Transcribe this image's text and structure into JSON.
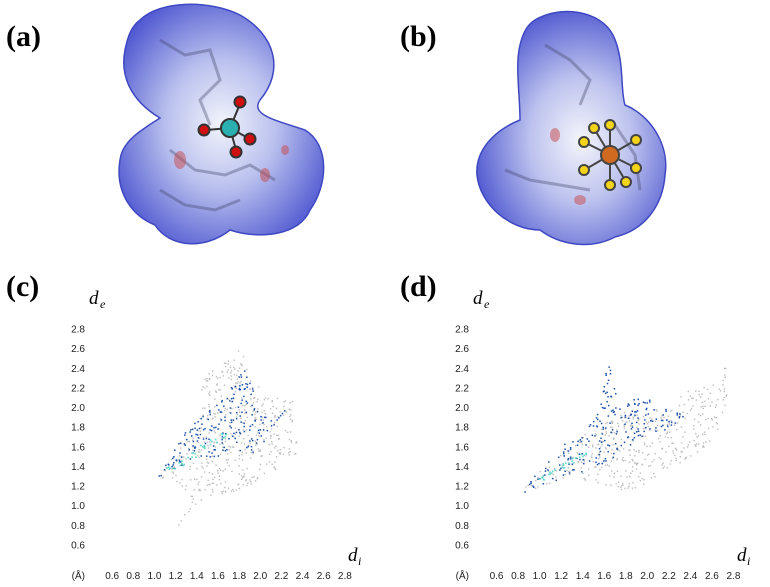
{
  "figure": {
    "panels": [
      {
        "label": "(a)"
      },
      {
        "label": "(b)"
      },
      {
        "label": "(c)"
      },
      {
        "label": "(d)"
      }
    ],
    "colors": {
      "surface_blue": "#5a63d6",
      "surface_white": "#e8ecf6",
      "surface_red": "#c84a4a",
      "points_grey": "#bdbdbd",
      "points_blue": "#1b4fa8",
      "points_cyan": "#5fd8c8",
      "atom_oxygen": "#d01010",
      "atom_chlorine": "#2ab0b0",
      "atom_fluorine": "#f3d418",
      "atom_phosphorus": "#d06a20"
    }
  },
  "chart_data": [
    {
      "type": "scatter",
      "panel": "(c)",
      "ylabel_main": "d",
      "ylabel_sub": "e",
      "xlabel_main": "d",
      "xlabel_sub": "i",
      "x_unit_label": "(Å)",
      "xlim": [
        0.4,
        3.0
      ],
      "ylim": [
        0.4,
        3.0
      ],
      "x_ticks": [
        "0.6",
        "0.8",
        "1.0",
        "1.2",
        "1.4",
        "1.6",
        "1.8",
        "2.0",
        "2.2",
        "2.4",
        "2.6",
        "2.8"
      ],
      "y_ticks": [
        "0.6",
        "0.8",
        "1.0",
        "1.2",
        "1.4",
        "1.6",
        "1.8",
        "2.0",
        "2.2",
        "2.4",
        "2.6",
        "2.8"
      ],
      "series": [
        {
          "role": "full-fingerprint",
          "color": "#bdbdbd",
          "outline": [
            [
              1.18,
              0.74
            ],
            [
              1.45,
              1.05
            ],
            [
              1.8,
              1.18
            ],
            [
              2.05,
              1.3
            ],
            [
              2.35,
              1.55
            ],
            [
              2.3,
              2.15
            ],
            [
              2.05,
              2.1
            ],
            [
              1.82,
              2.62
            ],
            [
              1.62,
              2.45
            ],
            [
              1.45,
              2.35
            ],
            [
              1.42,
              1.95
            ],
            [
              1.25,
              1.62
            ],
            [
              1.02,
              1.3
            ],
            [
              1.25,
              1.22
            ],
            [
              1.35,
              1.05
            ]
          ]
        },
        {
          "role": "highlighted-contacts",
          "color": "#1b4fa8",
          "outline": [
            [
              1.02,
              1.28
            ],
            [
              1.3,
              1.45
            ],
            [
              1.55,
              1.5
            ],
            [
              1.72,
              1.55
            ],
            [
              1.92,
              1.55
            ],
            [
              2.08,
              1.72
            ],
            [
              2.28,
              2.05
            ],
            [
              2.12,
              1.9
            ],
            [
              1.98,
              2.0
            ],
            [
              1.85,
              2.55
            ],
            [
              1.78,
              2.3
            ],
            [
              1.65,
              2.12
            ],
            [
              1.5,
              1.98
            ],
            [
              1.3,
              1.8
            ],
            [
              1.22,
              1.65
            ]
          ]
        },
        {
          "role": "high-density",
          "color": "#5fd8c8",
          "points": [
            [
              1.15,
              1.38
            ],
            [
              1.25,
              1.45
            ],
            [
              1.35,
              1.52
            ],
            [
              1.45,
              1.6
            ],
            [
              1.55,
              1.66
            ],
            [
              1.65,
              1.73
            ]
          ]
        }
      ]
    },
    {
      "type": "scatter",
      "panel": "(d)",
      "ylabel_main": "d",
      "ylabel_sub": "e",
      "xlabel_main": "d",
      "xlabel_sub": "i",
      "x_unit_label": "(Å)",
      "xlim": [
        0.4,
        3.0
      ],
      "ylim": [
        0.4,
        3.0
      ],
      "x_ticks": [
        "0.6",
        "0.8",
        "1.0",
        "1.2",
        "1.4",
        "1.6",
        "1.8",
        "2.0",
        "2.2",
        "2.4",
        "2.6",
        "2.8"
      ],
      "y_ticks": [
        "0.6",
        "0.8",
        "1.0",
        "1.2",
        "1.4",
        "1.6",
        "1.8",
        "2.0",
        "2.2",
        "2.4",
        "2.6",
        "2.8"
      ],
      "series": [
        {
          "role": "full-fingerprint",
          "color": "#bdbdbd",
          "outline": [
            [
              0.78,
              1.12
            ],
            [
              1.3,
              1.3
            ],
            [
              1.65,
              1.2
            ],
            [
              1.82,
              1.15
            ],
            [
              2.05,
              1.28
            ],
            [
              2.3,
              1.45
            ],
            [
              2.55,
              1.62
            ],
            [
              2.72,
              1.9
            ],
            [
              2.75,
              2.5
            ],
            [
              2.62,
              2.25
            ],
            [
              2.35,
              2.18
            ],
            [
              2.2,
              2.05
            ],
            [
              2.05,
              1.98
            ],
            [
              1.85,
              2.0
            ],
            [
              1.6,
              1.9
            ],
            [
              1.35,
              1.68
            ],
            [
              1.05,
              1.42
            ]
          ]
        },
        {
          "role": "highlighted-contacts",
          "color": "#1b4fa8",
          "outline": [
            [
              0.78,
              1.12
            ],
            [
              1.25,
              1.3
            ],
            [
              1.55,
              1.42
            ],
            [
              1.85,
              1.62
            ],
            [
              2.15,
              1.78
            ],
            [
              2.4,
              1.9
            ],
            [
              2.25,
              2.0
            ],
            [
              2.0,
              2.12
            ],
            [
              1.75,
              2.1
            ],
            [
              1.62,
              2.5
            ],
            [
              1.55,
              2.05
            ],
            [
              1.38,
              1.78
            ],
            [
              1.15,
              1.58
            ],
            [
              0.95,
              1.35
            ]
          ]
        },
        {
          "role": "high-density",
          "color": "#5fd8c8",
          "points": [
            [
              1.0,
              1.3
            ],
            [
              1.1,
              1.36
            ],
            [
              1.2,
              1.42
            ],
            [
              1.3,
              1.47
            ],
            [
              1.4,
              1.52
            ]
          ]
        }
      ]
    }
  ]
}
